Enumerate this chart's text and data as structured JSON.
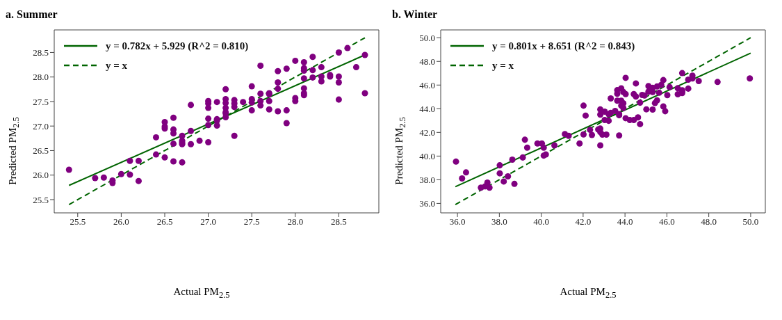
{
  "chart_data": [
    {
      "type": "scatter",
      "title": "a. Summer",
      "xlabel": "Actual PM$_{2.5}$",
      "ylabel": "Predicted PM$_{2.5}$",
      "legend": "top left",
      "xlim": [
        25.23,
        28.96
      ],
      "ylim": [
        25.23,
        28.96
      ],
      "xticks": [
        {
          "value": 25.5,
          "label": "25.5"
        },
        {
          "value": 26,
          "label": "26.0"
        },
        {
          "value": 26.5,
          "label": "26.5"
        },
        {
          "value": 27,
          "label": "27.0"
        },
        {
          "value": 27.5,
          "label": "27.5"
        },
        {
          "value": 28,
          "label": "28.0"
        },
        {
          "value": 28.5,
          "label": "28.5"
        }
      ],
      "yticks": [
        {
          "value": 25.5,
          "label": "25.5"
        },
        {
          "value": 26,
          "label": "26.0"
        },
        {
          "value": 26.5,
          "label": "26.5"
        },
        {
          "value": 27,
          "label": "27.0"
        },
        {
          "value": 27.5,
          "label": "27.5"
        },
        {
          "value": 28,
          "label": "28.0"
        },
        {
          "value": 28.5,
          "label": "28.5"
        }
      ],
      "series": [
        {
          "type": "scatter",
          "color": "#800080",
          "marker": "circle",
          "x": [
            25.4,
            25.7,
            25.8,
            25.9,
            25.9,
            26.0,
            26.1,
            26.1,
            26.2,
            26.2,
            26.4,
            26.4,
            26.5,
            26.5,
            26.5,
            26.5,
            26.6,
            26.6,
            26.6,
            26.6,
            26.6,
            26.7,
            26.7,
            26.7,
            26.7,
            26.7,
            26.8,
            26.8,
            26.8,
            26.9,
            27.0,
            27.0,
            27.0,
            27.0,
            27.0,
            27.0,
            27.1,
            27.1,
            27.1,
            27.1,
            27.2,
            27.2,
            27.2,
            27.2,
            27.2,
            27.2,
            27.2,
            27.3,
            27.3,
            27.3,
            27.3,
            27.4,
            27.5,
            27.5,
            27.5,
            27.5,
            27.6,
            27.6,
            27.6,
            27.6,
            27.7,
            27.7,
            27.7,
            27.7,
            27.8,
            27.8,
            27.8,
            27.8,
            27.9,
            27.9,
            27.9,
            28.0,
            28.0,
            28.0,
            28.1,
            28.1,
            28.1,
            28.1,
            28.1,
            28.1,
            28.1,
            28.2,
            28.2,
            28.2,
            28.3,
            28.3,
            28.3,
            28.4,
            28.4,
            28.5,
            28.5,
            28.5,
            28.5,
            28.6,
            28.7,
            28.8,
            28.8
          ],
          "values": [
            26.11,
            25.94,
            25.95,
            25.89,
            25.84,
            26.02,
            26.29,
            26.01,
            26.29,
            25.88,
            26.77,
            26.42,
            27.08,
            26.99,
            26.95,
            26.36,
            27.17,
            26.93,
            26.85,
            26.64,
            26.28,
            26.8,
            26.7,
            26.66,
            26.63,
            26.26,
            27.43,
            26.9,
            26.63,
            26.7,
            27.51,
            27.46,
            27.37,
            27.15,
            27.02,
            26.67,
            27.49,
            27.14,
            27.11,
            27.01,
            27.75,
            27.55,
            27.47,
            27.37,
            27.28,
            27.26,
            27.18,
            27.53,
            27.46,
            27.39,
            26.8,
            27.49,
            27.81,
            27.55,
            27.48,
            27.32,
            28.23,
            27.66,
            27.51,
            27.42,
            27.67,
            27.65,
            27.51,
            27.34,
            28.12,
            27.89,
            27.76,
            27.3,
            28.17,
            27.32,
            27.06,
            28.33,
            27.57,
            27.51,
            28.3,
            28.18,
            28.13,
            27.97,
            27.77,
            27.67,
            27.63,
            28.41,
            28.14,
            27.99,
            28.2,
            28.01,
            27.91,
            28.04,
            28.01,
            28.5,
            28.01,
            27.89,
            27.54,
            28.59,
            28.2,
            28.45,
            27.67
          ]
        },
        {
          "type": "line",
          "name": "y = 0.782x + 5.929 (R^2 = 0.810)",
          "color": "#006400",
          "line_style": "solid",
          "x": [
            25.4,
            28.8
          ],
          "values": [
            25.79,
            28.45
          ]
        },
        {
          "type": "line",
          "name": "y = x",
          "color": "#006400",
          "line_style": "dashed",
          "x": [
            25.4,
            28.8
          ],
          "values": [
            25.4,
            28.8
          ]
        }
      ]
    },
    {
      "type": "scatter",
      "title": "b. Winter",
      "xlabel": "Actual PM$_{2.5}$",
      "ylabel": "Predicted PM$_{2.5}$",
      "legend": "top left",
      "xlim": [
        35.2,
        50.7
      ],
      "ylim": [
        35.2,
        50.66
      ],
      "xticks": [
        {
          "value": 36,
          "label": "36.0"
        },
        {
          "value": 38,
          "label": "38.0"
        },
        {
          "value": 40,
          "label": "40.0"
        },
        {
          "value": 42,
          "label": "42.0"
        },
        {
          "value": 44,
          "label": "44.0"
        },
        {
          "value": 46,
          "label": "46.0"
        },
        {
          "value": 48,
          "label": "48.0"
        },
        {
          "value": 50,
          "label": "50.0"
        }
      ],
      "yticks": [
        {
          "value": 36,
          "label": "36.0"
        },
        {
          "value": 38,
          "label": "38.0"
        },
        {
          "value": 40,
          "label": "40.0"
        },
        {
          "value": 42,
          "label": "42.0"
        },
        {
          "value": 44,
          "label": "44.0"
        },
        {
          "value": 46,
          "label": "46.0"
        },
        {
          "value": 48,
          "label": "48.0"
        },
        {
          "value": 50,
          "label": "50.0"
        }
      ],
      "series": [
        {
          "type": "scatter",
          "color": "#800080",
          "marker": "circle",
          "x": [
            35.93,
            36.22,
            36.41,
            37.12,
            37.32,
            37.43,
            37.53,
            38.02,
            38.02,
            38.21,
            38.41,
            38.62,
            38.72,
            39.12,
            39.22,
            39.33,
            39.82,
            40.03,
            40.12,
            40.12,
            40.22,
            40.63,
            41.13,
            41.31,
            41.83,
            42.02,
            42.02,
            42.12,
            42.33,
            42.42,
            42.72,
            42.82,
            42.82,
            42.82,
            42.82,
            42.82,
            42.92,
            43.03,
            43.03,
            43.11,
            43.22,
            43.22,
            43.32,
            43.32,
            43.53,
            43.63,
            43.63,
            43.63,
            43.72,
            43.72,
            43.72,
            43.82,
            43.82,
            43.82,
            43.92,
            43.92,
            43.92,
            44.03,
            44.03,
            44.03,
            44.23,
            44.42,
            44.42,
            44.52,
            44.52,
            44.62,
            44.72,
            44.72,
            44.82,
            44.93,
            45.02,
            45.12,
            45.12,
            45.32,
            45.32,
            45.32,
            45.43,
            45.53,
            45.53,
            45.63,
            45.73,
            45.83,
            45.83,
            45.92,
            46.02,
            46.13,
            46.52,
            46.52,
            46.73,
            46.73,
            46.73,
            46.73,
            47.02,
            47.02,
            47.22,
            47.22,
            47.52,
            48.42,
            49.96
          ],
          "values": [
            39.53,
            38.11,
            38.62,
            37.33,
            37.44,
            37.76,
            37.33,
            39.22,
            38.54,
            37.85,
            38.29,
            39.7,
            37.65,
            39.88,
            41.38,
            40.71,
            41.06,
            41.06,
            40.71,
            40.04,
            40.14,
            40.9,
            41.86,
            41.71,
            41.06,
            44.26,
            41.83,
            43.42,
            42.22,
            41.78,
            42.25,
            43.94,
            43.5,
            42.32,
            42.03,
            40.9,
            41.81,
            43.75,
            43.05,
            41.81,
            43.55,
            42.98,
            44.87,
            43.65,
            43.81,
            45.57,
            45.27,
            44.68,
            43.55,
            43.45,
            41.74,
            45.72,
            44.68,
            44.26,
            45.41,
            44.46,
            44.06,
            46.61,
            45.24,
            43.2,
            43.05,
            45.24,
            43.05,
            46.14,
            45.03,
            43.27,
            44.51,
            42.7,
            45.16,
            45.12,
            43.95,
            45.91,
            45.44,
            45.76,
            45.41,
            43.93,
            44.48,
            45.88,
            44.71,
            45.35,
            46.02,
            46.42,
            44.19,
            43.79,
            45.15,
            45.83,
            45.73,
            45.22,
            47.01,
            45.56,
            45.44,
            45.32,
            46.46,
            45.7,
            46.8,
            46.56,
            46.34,
            46.26,
            46.56
          ]
        },
        {
          "type": "line",
          "name": "y = 0.801x + 8.651 (R^2 = 0.843)",
          "color": "#006400",
          "line_style": "solid",
          "x": [
            35.9,
            50.0
          ],
          "values": [
            37.41,
            48.7
          ]
        },
        {
          "type": "line",
          "name": "y = x",
          "color": "#006400",
          "line_style": "dashed",
          "x": [
            35.9,
            50.0
          ],
          "values": [
            35.9,
            50.0
          ]
        }
      ]
    }
  ]
}
